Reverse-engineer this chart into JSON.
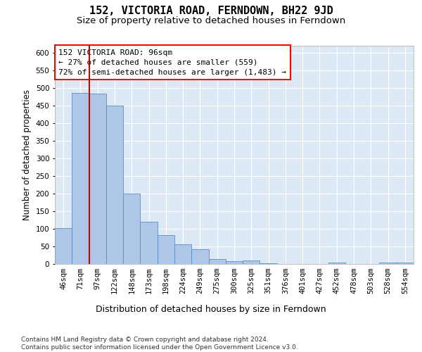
{
  "title": "152, VICTORIA ROAD, FERNDOWN, BH22 9JD",
  "subtitle": "Size of property relative to detached houses in Ferndown",
  "xlabel": "Distribution of detached houses by size in Ferndown",
  "ylabel": "Number of detached properties",
  "categories": [
    "46sqm",
    "71sqm",
    "97sqm",
    "122sqm",
    "148sqm",
    "173sqm",
    "198sqm",
    "224sqm",
    "249sqm",
    "275sqm",
    "300sqm",
    "325sqm",
    "351sqm",
    "376sqm",
    "401sqm",
    "427sqm",
    "452sqm",
    "478sqm",
    "503sqm",
    "528sqm",
    "554sqm"
  ],
  "values": [
    103,
    487,
    485,
    450,
    200,
    120,
    82,
    57,
    42,
    15,
    8,
    10,
    2,
    1,
    0,
    0,
    5,
    0,
    0,
    5,
    5
  ],
  "bar_color": "#aec6e8",
  "bar_edge_color": "#5a8fc0",
  "background_color": "#dde8f5",
  "grid_color": "#ffffff",
  "annotation_text": "152 VICTORIA ROAD: 96sqm\n← 27% of detached houses are smaller (559)\n72% of semi-detached houses are larger (1,483) →",
  "vline_x": 1.5,
  "vline_color": "#cc0000",
  "ylim": [
    0,
    620
  ],
  "yticks": [
    0,
    50,
    100,
    150,
    200,
    250,
    300,
    350,
    400,
    450,
    500,
    550,
    600
  ],
  "footer": "Contains HM Land Registry data © Crown copyright and database right 2024.\nContains public sector information licensed under the Open Government Licence v3.0.",
  "title_fontsize": 11,
  "subtitle_fontsize": 9.5,
  "xlabel_fontsize": 9,
  "ylabel_fontsize": 8.5,
  "tick_fontsize": 7.5,
  "annotation_fontsize": 8,
  "footer_fontsize": 6.5
}
